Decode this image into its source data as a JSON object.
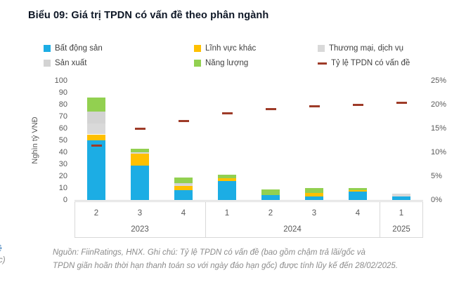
{
  "header": {
    "title": "Biểu 09: Giá trị TPDN có vấn đề theo phân ngành"
  },
  "legend": {
    "items": [
      {
        "label": "Bất động sản",
        "color": "#1cade4",
        "marker": "square"
      },
      {
        "label": "Lĩnh vực khác",
        "color": "#ffc000",
        "marker": "square"
      },
      {
        "label": "Thương mại, dịch vụ",
        "color": "#d9d9d9",
        "marker": "square"
      },
      {
        "label": "Sản xuất",
        "color": "#d3d3d3",
        "marker": "square"
      },
      {
        "label": "Năng lượng",
        "color": "#92d050",
        "marker": "square"
      },
      {
        "label": "Tỷ lệ TPDN có vấn đề",
        "color": "#9e3b28",
        "marker": "dash"
      }
    ]
  },
  "chart_data": {
    "type": "bar",
    "subtype": "stacked-bars-with-line",
    "title": "Biểu 09: Giá trị TPDN có vấn đề theo phân ngành",
    "ylabel": "Nghìn tỷ VNĐ",
    "ylim_left": [
      0,
      100
    ],
    "ytick_step_left": 10,
    "ylim_right_pct": [
      0,
      25
    ],
    "ytick_step_right_pct": 5,
    "grid": false,
    "legend_position": "top",
    "quarters": [
      "2",
      "3",
      "4",
      "1",
      "2",
      "3",
      "4",
      "1"
    ],
    "year_groups": [
      {
        "label": "2023",
        "span": 3
      },
      {
        "label": "2024",
        "span": 4
      },
      {
        "label": "2025",
        "span": 1
      }
    ],
    "series": [
      {
        "name": "Bất động sản",
        "color": "#1cade4",
        "values": [
          50,
          29,
          8,
          16,
          4,
          3,
          7,
          3
        ]
      },
      {
        "name": "Lĩnh vực khác",
        "color": "#ffc000",
        "values": [
          5,
          10,
          4,
          2,
          0,
          3,
          1,
          0
        ]
      },
      {
        "name": "Thương mại, dịch vụ",
        "color": "#d9d9d9",
        "values": [
          9,
          1,
          1,
          0,
          0,
          0,
          0,
          2.5
        ]
      },
      {
        "name": "Sản xuất",
        "color": "#d3d3d3",
        "values": [
          10,
          0,
          1,
          0,
          0,
          0,
          0,
          0
        ]
      },
      {
        "name": "Năng lượng",
        "color": "#92d050",
        "values": [
          12,
          3,
          5,
          3,
          5,
          4,
          2,
          0
        ]
      }
    ],
    "line_series": {
      "name": "Tỷ lệ TPDN có vấn đề",
      "color": "#9e3b28",
      "values_pct": [
        11.4,
        15.0,
        16.5,
        18.2,
        19.0,
        19.6,
        19.9,
        20.3
      ]
    }
  },
  "footer": {
    "line1": "Nguồn: FiinRatings, HNX. Ghi chú:  Tỷ lệ TPDN có vấn đề (bao gồm chậm trả lãi/gốc và",
    "line2": "TPDN giãn hoãn thời hạn thanh toán so với ngày đáo hạn gốc) được tính lũy kế đến 28/02/2025."
  },
  "edge_fragments": {
    "top": "ề",
    "bottom": "c)"
  }
}
